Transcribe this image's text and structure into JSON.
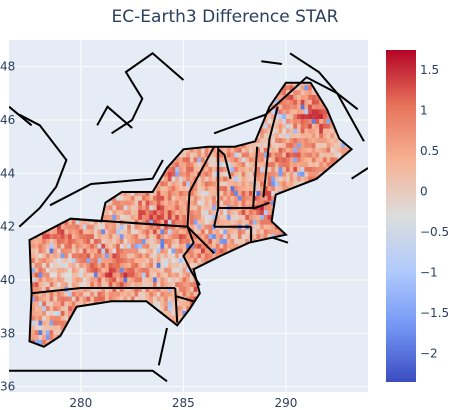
{
  "chart_data": {
    "type": "heatmap",
    "title": "EC-Earth3 Difference STAR",
    "xlabel": "",
    "ylabel": "",
    "xlim": [
      276.5,
      294.0
    ],
    "ylim": [
      35.8,
      49.0
    ],
    "xticks": [
      280,
      285,
      290
    ],
    "yticks": [
      36,
      38,
      40,
      42,
      44,
      46,
      48
    ],
    "colorbar": {
      "min": -2.35,
      "max": 1.75,
      "ticks": [
        1.5,
        1,
        0.5,
        0,
        -0.5,
        -1,
        -1.5,
        -2
      ],
      "tick_labels": [
        "1.5",
        "1",
        "0.5",
        "0",
        "−0.5",
        "−1",
        "−1.5",
        "−2"
      ],
      "colorscale": [
        "#3b4cc0",
        "#7396f5",
        "#b0cbfc",
        "#dcdddd",
        "#f6b294",
        "#e7735b",
        "#b40426"
      ]
    },
    "background": "#e5ecf6",
    "grid": true,
    "field_summary": "Difference field over the northeastern US, mostly positive (0 to 1.2) with scattered negative patches down to about -2.3"
  }
}
